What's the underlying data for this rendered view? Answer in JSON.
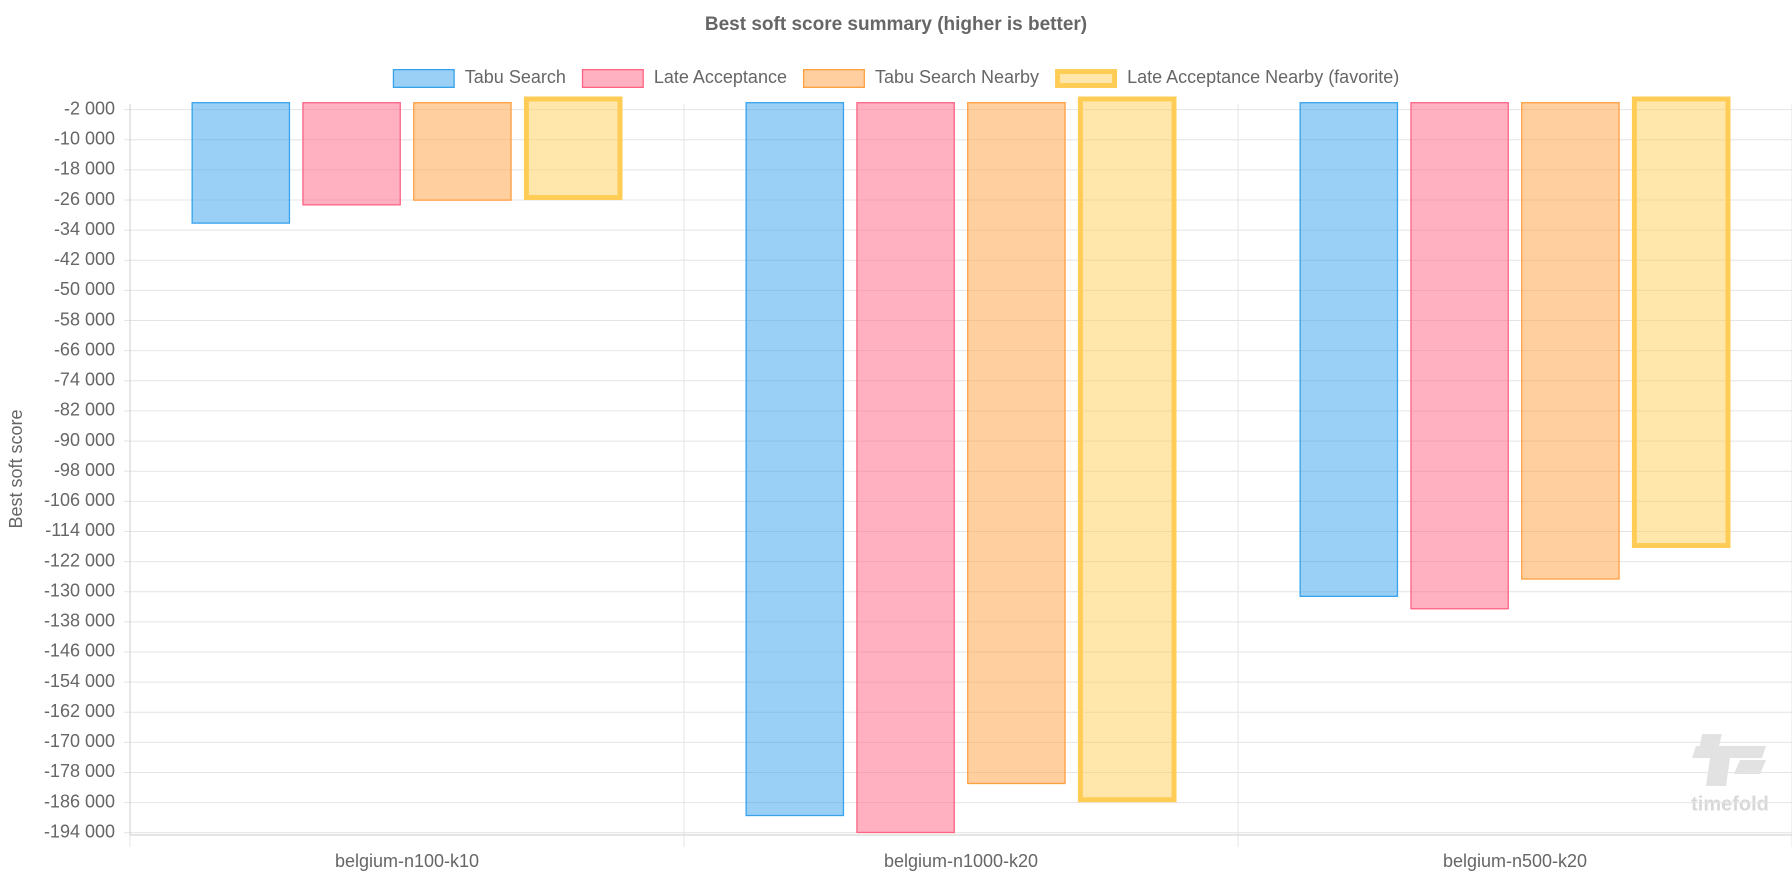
{
  "chart_data": {
    "type": "bar",
    "title": "Best soft score summary (higher is better)",
    "y_label": "Best soft score",
    "watermark": "timefold",
    "categories": [
      "belgium-n100-k10",
      "belgium-n1000-k20",
      "belgium-n500-k20"
    ],
    "series": [
      {
        "name": "Tabu Search",
        "color": "#36a2eb",
        "values": [
          -32300,
          -189600,
          -131400
        ]
      },
      {
        "name": "Late Acceptance",
        "color": "#ff6384",
        "values": [
          -27450,
          -194100,
          -134700
        ]
      },
      {
        "name": "Tabu Search Nearby",
        "color": "#ff9f40",
        "values": [
          -26200,
          -181100,
          -126800
        ]
      },
      {
        "name": "Late Acceptance Nearby (favorite)",
        "color": "#ffcd56",
        "values": [
          -26000,
          -185900,
          -118400
        ]
      }
    ],
    "favorite": "Late Acceptance Nearby (favorite)",
    "ylim": [
      -194600,
      -500
    ],
    "yticks": [
      {
        "value": -2000,
        "label": "-2 000"
      },
      {
        "value": -10000,
        "label": "-10 000"
      },
      {
        "value": -18000,
        "label": "-18 000"
      },
      {
        "value": -26000,
        "label": "-26 000"
      },
      {
        "value": -34000,
        "label": "-34 000"
      },
      {
        "value": -42000,
        "label": "-42 000"
      },
      {
        "value": -50000,
        "label": "-50 000"
      },
      {
        "value": -58000,
        "label": "-58 000"
      },
      {
        "value": -66000,
        "label": "-66 000"
      },
      {
        "value": -74000,
        "label": "-74 000"
      },
      {
        "value": -82000,
        "label": "-82 000"
      },
      {
        "value": -90000,
        "label": "-90 000"
      },
      {
        "value": -98000,
        "label": "-98 000"
      },
      {
        "value": -106000,
        "label": "-106 000"
      },
      {
        "value": -114000,
        "label": "-114 000"
      },
      {
        "value": -122000,
        "label": "-122 000"
      },
      {
        "value": -130000,
        "label": "-130 000"
      },
      {
        "value": -138000,
        "label": "-138 000"
      },
      {
        "value": -146000,
        "label": "-146 000"
      },
      {
        "value": -154000,
        "label": "-154 000"
      },
      {
        "value": -162000,
        "label": "-162 000"
      },
      {
        "value": -170000,
        "label": "-170 000"
      },
      {
        "value": -178000,
        "label": "-178 000"
      },
      {
        "value": -186000,
        "label": "-186 000"
      },
      {
        "value": -194000,
        "label": "-194 000"
      }
    ],
    "grid": true
  }
}
